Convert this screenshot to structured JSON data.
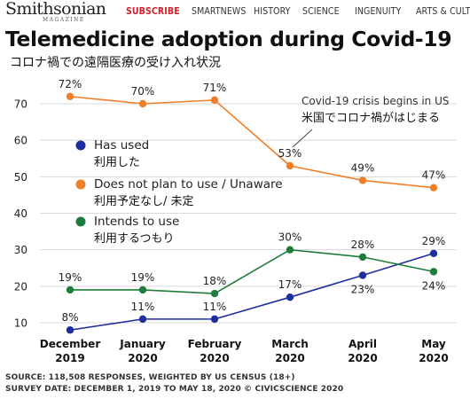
{
  "header": {
    "logo_text": "Smithsonian",
    "logo_sub": "MAGAZINE",
    "nav": [
      "SUBSCRIBE",
      "SMARTNEWS",
      "HISTORY",
      "SCIENCE",
      "INGENUITY",
      "ARTS & CULTURE"
    ]
  },
  "title": "Telemedicine adoption during Covid-19",
  "subtitle": "コロナ禍での遠隔医療の受け入れ状況",
  "annotation": {
    "line1": "Covid-19 crisis begins in US",
    "line2": "米国でコロナ禍がはじまる"
  },
  "footer": {
    "line1": "SOURCE: 118,508 RESPONSES, WEIGHTED BY US CENSUS (18+)",
    "line2": "SURVEY DATE: DECEMBER 1, 2019 TO MAY 18, 2020  © CIVICSCIENCE 2020"
  },
  "colors": {
    "has_used": "#1f2e9e",
    "no_plan": "#f07f2a",
    "intends": "#1e7d3a",
    "grid": "#d9d9d9"
  },
  "chart_data": {
    "type": "line",
    "title": "Telemedicine adoption during Covid-19",
    "categories": [
      {
        "month": "December",
        "year": "2019"
      },
      {
        "month": "January",
        "year": "2020"
      },
      {
        "month": "February",
        "year": "2020"
      },
      {
        "month": "March",
        "year": "2020"
      },
      {
        "month": "April",
        "year": "2020"
      },
      {
        "month": "May",
        "year": "2020"
      }
    ],
    "ylim": [
      10,
      70
    ],
    "yticks": [
      10,
      20,
      30,
      40,
      50,
      60,
      70
    ],
    "grid": "horizontal",
    "legend_position": "left",
    "series": [
      {
        "key": "has_used",
        "name": "Has used",
        "name_ja": "利用した",
        "values": [
          8,
          11,
          11,
          17,
          23,
          29
        ],
        "labels": [
          "8%",
          "11%",
          "11%",
          "17%",
          "23%",
          "29%"
        ]
      },
      {
        "key": "no_plan",
        "name": "Does not plan to use / Unaware",
        "name_ja": "利用予定なし/ 未定",
        "values": [
          72,
          70,
          71,
          53,
          49,
          47
        ],
        "labels": [
          "72%",
          "70%",
          "71%",
          "53%",
          "49%",
          "47%"
        ]
      },
      {
        "key": "intends",
        "name": "Intends to use",
        "name_ja": "利用するつもり",
        "values": [
          19,
          19,
          18,
          30,
          28,
          24
        ],
        "labels": [
          "19%",
          "19%",
          "18%",
          "30%",
          "28%",
          "24%"
        ]
      }
    ]
  }
}
